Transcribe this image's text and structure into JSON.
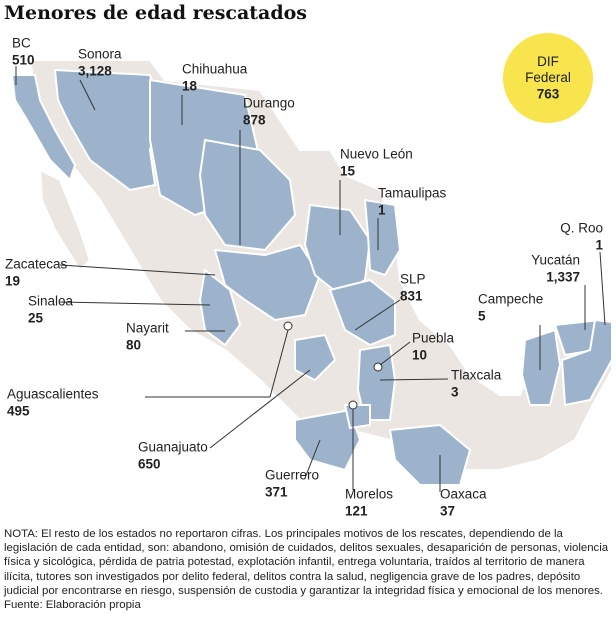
{
  "title": "Menores de edad rescatados",
  "dif": {
    "name": "DIF Federal",
    "value": "763"
  },
  "states": [
    {
      "name": "BC",
      "value": "510"
    },
    {
      "name": "Sonora",
      "value": "3,128"
    },
    {
      "name": "Chihuahua",
      "value": "18"
    },
    {
      "name": "Durango",
      "value": "878"
    },
    {
      "name": "Nuevo León",
      "value": "15"
    },
    {
      "name": "Tamaulipas",
      "value": "1"
    },
    {
      "name": "Zacatecas",
      "value": "19"
    },
    {
      "name": "Sinaloa",
      "value": "25"
    },
    {
      "name": "Nayarit",
      "value": "80"
    },
    {
      "name": "SLP",
      "value": "831"
    },
    {
      "name": "Puebla",
      "value": "10"
    },
    {
      "name": "Tlaxcala",
      "value": "3"
    },
    {
      "name": "Aguascalientes",
      "value": "495"
    },
    {
      "name": "Guanajuato",
      "value": "650"
    },
    {
      "name": "Guerrero",
      "value": "371"
    },
    {
      "name": "Morelos",
      "value": "121"
    },
    {
      "name": "Oaxaca",
      "value": "37"
    },
    {
      "name": "Q. Roo",
      "value": "1"
    },
    {
      "name": "Yucatán",
      "value": "1,337"
    },
    {
      "name": "Campeche",
      "value": "5"
    }
  ],
  "note": "NOTA: El resto de los estados no reportaron cifras. Los principales motivos de los rescates, dependiendo de la legislación de cada entidad, son: abandono, omisión de cuidados, delitos sexuales, desaparición de personas, violencia física y sicológica, pérdida de patria potestad, explotación infantil, entrega voluntaria, traídos al territorio de manera ilícita, tutores son investigados por delito federal, delitos contra la salud, negligencia grave de los padres, depósito judicial por encontrarse en riesgo, suspensión de custodia y garantizar la integridad física y emocional de los menores. Fuente: Elaboración propia"
}
